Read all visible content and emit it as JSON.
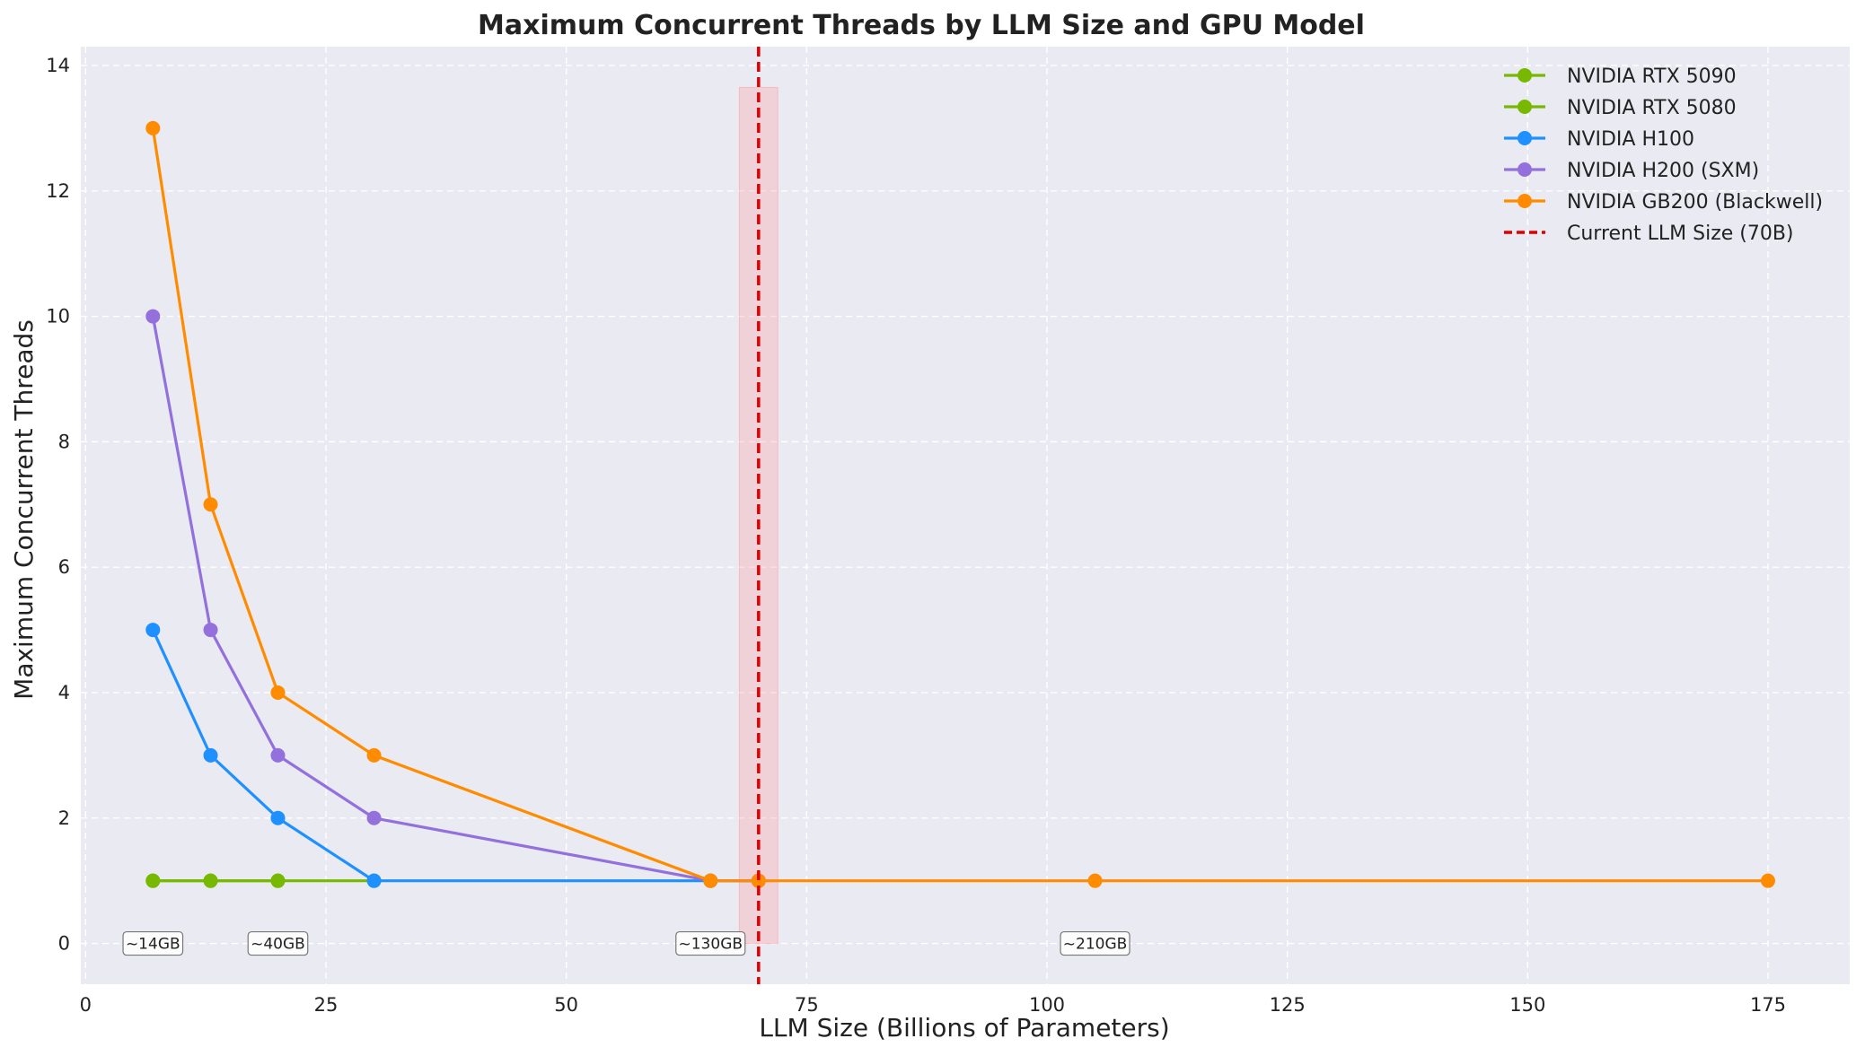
{
  "chart_data": {
    "type": "line",
    "title": "Maximum Concurrent Threads by LLM Size and GPU Model",
    "xlabel": "LLM Size (Billions of Parameters)",
    "ylabel": "Maximum Concurrent Threads",
    "xlim": [
      -0.5,
      183.5
    ],
    "ylim": [
      -0.65,
      14.3
    ],
    "xticks": [
      0,
      25,
      50,
      75,
      100,
      125,
      150,
      175
    ],
    "yticks": [
      0,
      2,
      4,
      6,
      8,
      10,
      12,
      14
    ],
    "grid": true,
    "legend_position": "top-right",
    "series": [
      {
        "name": "NVIDIA RTX 5090",
        "color": "#76b900",
        "x": [
          7,
          13,
          20,
          30
        ],
        "y": [
          1,
          1,
          1,
          1
        ]
      },
      {
        "name": "NVIDIA RTX 5080",
        "color": "#76b900",
        "x": [
          7,
          13,
          20
        ],
        "y": [
          1,
          1,
          1
        ]
      },
      {
        "name": "NVIDIA H100",
        "color": "#1e90ff",
        "x": [
          7,
          13,
          20,
          30,
          65,
          70
        ],
        "y": [
          5,
          3,
          2,
          1,
          1,
          1
        ]
      },
      {
        "name": "NVIDIA H200 (SXM)",
        "color": "#9370db",
        "x": [
          7,
          13,
          20,
          30,
          65,
          70
        ],
        "y": [
          10,
          5,
          3,
          2,
          1,
          1
        ]
      },
      {
        "name": "NVIDIA GB200 (Blackwell)",
        "color": "#ff8c00",
        "x": [
          7,
          13,
          20,
          30,
          65,
          70,
          105,
          175
        ],
        "y": [
          13,
          7,
          4,
          3,
          1,
          1,
          1,
          1
        ]
      }
    ],
    "reference_line": {
      "name": "Current LLM Size (70B)",
      "x": 70,
      "color": "#e00000"
    },
    "highlight_band": {
      "x_range": [
        68,
        72
      ],
      "y_range": [
        0,
        13.65
      ],
      "color": "#ff9999"
    },
    "annotations": [
      {
        "text": "~14GB",
        "x": 7,
        "y": 0
      },
      {
        "text": "~40GB",
        "x": 20,
        "y": 0
      },
      {
        "text": "~130GB",
        "x": 65,
        "y": 0
      },
      {
        "text": "~210GB",
        "x": 105,
        "y": 0
      }
    ]
  }
}
